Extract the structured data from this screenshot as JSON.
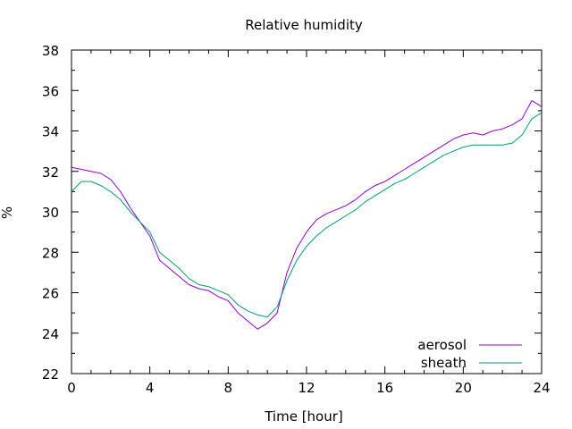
{
  "chart_data": {
    "type": "line",
    "title": "Relative humidity",
    "xlabel": "Time [hour]",
    "ylabel": "%",
    "xlim": [
      0,
      24
    ],
    "ylim": [
      22,
      38
    ],
    "xticks": [
      0,
      4,
      8,
      12,
      16,
      20,
      24
    ],
    "yticks": [
      22,
      24,
      26,
      28,
      30,
      32,
      34,
      36,
      38
    ],
    "grid": false,
    "legend_position": "bottom-right",
    "x": [
      0,
      0.5,
      1,
      1.5,
      2,
      2.5,
      3,
      3.5,
      4,
      4.5,
      5,
      5.5,
      6,
      6.5,
      7,
      7.5,
      8,
      8.5,
      9,
      9.5,
      10,
      10.5,
      11,
      11.5,
      12,
      12.5,
      13,
      13.5,
      14,
      14.5,
      15,
      15.5,
      16,
      16.5,
      17,
      17.5,
      18,
      18.5,
      19,
      19.5,
      20,
      20.5,
      21,
      21.5,
      22,
      22.5,
      23,
      23.5,
      24
    ],
    "series": [
      {
        "name": "aerosol",
        "color": "#9400d3",
        "values": [
          32.2,
          32.1,
          32.0,
          31.9,
          31.6,
          31.0,
          30.2,
          29.5,
          28.8,
          27.6,
          27.2,
          26.8,
          26.4,
          26.2,
          26.1,
          25.8,
          25.6,
          25.0,
          24.6,
          24.2,
          24.5,
          25.0,
          27.0,
          28.2,
          29.0,
          29.6,
          29.9,
          30.1,
          30.3,
          30.6,
          31.0,
          31.3,
          31.5,
          31.8,
          32.1,
          32.4,
          32.7,
          33.0,
          33.3,
          33.6,
          33.8,
          33.9,
          33.8,
          34.0,
          34.1,
          34.3,
          34.6,
          35.5,
          35.2
        ]
      },
      {
        "name": "sheath",
        "color": "#009e73",
        "values": [
          31.0,
          31.5,
          31.5,
          31.3,
          31.0,
          30.6,
          30.0,
          29.5,
          29.0,
          28.0,
          27.6,
          27.2,
          26.7,
          26.4,
          26.3,
          26.1,
          25.9,
          25.4,
          25.1,
          24.9,
          24.8,
          25.3,
          26.6,
          27.6,
          28.3,
          28.8,
          29.2,
          29.5,
          29.8,
          30.1,
          30.5,
          30.8,
          31.1,
          31.4,
          31.6,
          31.9,
          32.2,
          32.5,
          32.8,
          33.0,
          33.2,
          33.3,
          33.3,
          33.3,
          33.3,
          33.4,
          33.8,
          34.6,
          34.9
        ]
      }
    ]
  }
}
